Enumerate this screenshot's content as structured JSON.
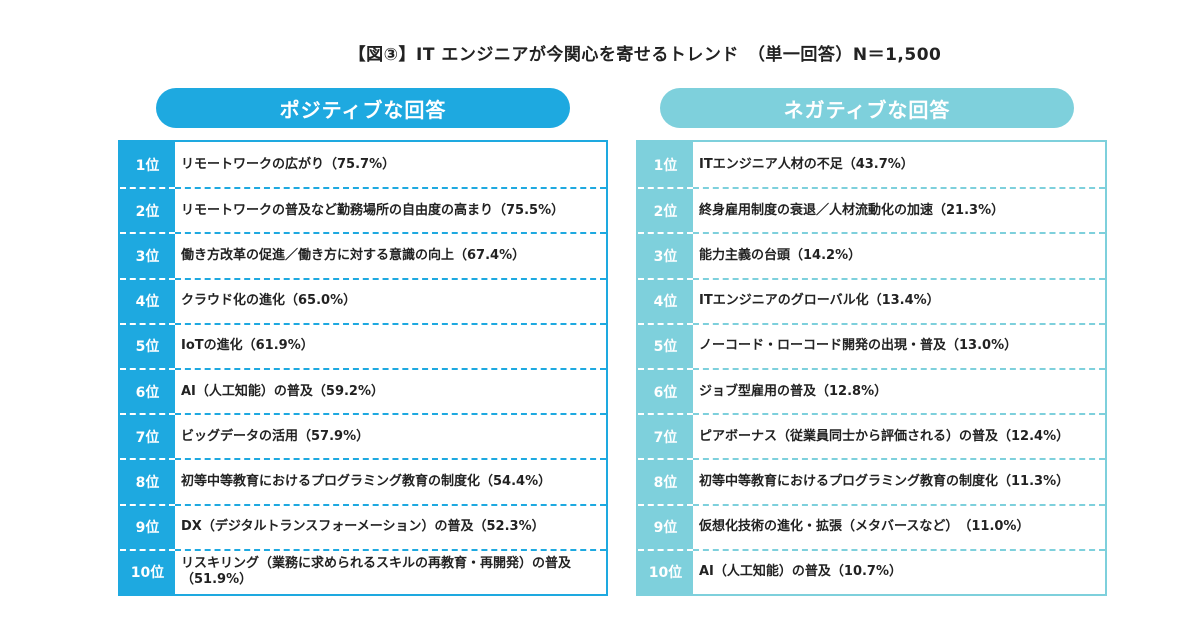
{
  "title": "【図③】IT エンジニアが今関心を寄せるトレンド　（単一回答）N＝1,500",
  "positive": {
    "heading": "ポジティブな回答",
    "ranks": [
      "1位",
      "2位",
      "3位",
      "4位",
      "5位",
      "6位",
      "7位",
      "8位",
      "9位",
      "10位"
    ],
    "items": [
      "リモートワークの広がり（75.7%）",
      "リモートワークの普及など勤務場所の自由度の高まり（75.5%）",
      "働き方改革の促進／働き方に対する意識の向上（67.4%）",
      "クラウド化の進化（65.0%）",
      "IoTの進化（61.9%）",
      "AI（人工知能）の普及（59.2%）",
      "ビッグデータの活用（57.9%）",
      "初等中等教育におけるプログラミング教育の制度化（54.4%）",
      "DX（デジタルトランスフォーメーション）の普及（52.3%）",
      "リスキリング（業務に求められるスキルの再教育・再開発）の普及（51.9%）"
    ]
  },
  "negative": {
    "heading": "ネガティブな回答",
    "ranks": [
      "1位",
      "2位",
      "3位",
      "4位",
      "5位",
      "6位",
      "7位",
      "8位",
      "9位",
      "10位"
    ],
    "items": [
      "ITエンジニア人材の不足（43.7%）",
      "終身雇用制度の衰退／人材流動化の加速（21.3%）",
      "能力主義の台頭（14.2%）",
      "ITエンジニアのグローバル化（13.4%）",
      "ノーコード・ローコード開発の出現・普及（13.0%）",
      "ジョブ型雇用の普及（12.8%）",
      "ピアボーナス（従業員同士から評価される）の普及（12.4%）",
      "初等中等教育におけるプログラミング教育の制度化（11.3%）",
      "仮想化技術の進化・拡張（メタバースなど）　（11.0%）",
      "AI（人工知能）の普及（10.7%）"
    ]
  }
}
